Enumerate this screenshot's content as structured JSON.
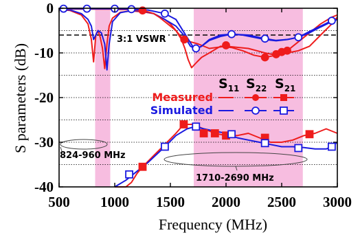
{
  "chart_data": {
    "type": "line",
    "title": "",
    "xlabel": "Frequency (MHz)",
    "ylabel": "S parameters (dB)",
    "xlim": [
      500,
      3000
    ],
    "ylim": [
      -40,
      0
    ],
    "x_ticks": [
      500,
      1000,
      1500,
      2000,
      2500,
      3000
    ],
    "y_ticks": [
      0,
      -10,
      -20,
      -30,
      -40
    ],
    "grid": "horizontal-dotted",
    "colors": {
      "measured": "#ee1c1c",
      "simulated": "#1a1ae0",
      "band": "#f7bde0"
    },
    "bands": [
      {
        "label": "824-960 MHz",
        "from": 824,
        "to": 960
      },
      {
        "label": "1710-2690 MHz",
        "from": 1710,
        "to": 2690
      }
    ],
    "reference_line": {
      "label": "3:1 VSWR",
      "y": -6
    },
    "legend": {
      "position": "center-right",
      "column_headers": [
        {
          "main": "S",
          "sub": "11"
        },
        {
          "main": "S",
          "sub": "22"
        },
        {
          "main": "S",
          "sub": "21"
        }
      ],
      "rows": [
        "Measured",
        "Simulated"
      ]
    },
    "series": [
      {
        "kind": "measured",
        "param": "S11",
        "marker": "none",
        "x": [
          500,
          600,
          700,
          760,
          790,
          810,
          830,
          850,
          870,
          890,
          910,
          930,
          950,
          980,
          1050,
          1150,
          1250,
          1350,
          1450,
          1500,
          1550,
          1600,
          1630,
          1660,
          1690,
          1710,
          1740,
          1780,
          1850,
          1950,
          2050,
          2150,
          2250,
          2350,
          2450,
          2550,
          2650,
          2750,
          2850,
          2950,
          3000
        ],
        "y": [
          -0.3,
          -0.5,
          -1.5,
          -3.5,
          -7,
          -12,
          -6,
          -5,
          -6.5,
          -9,
          -13.5,
          -8,
          -4,
          -2.2,
          -0.9,
          -0.6,
          -0.8,
          -1.2,
          -2.5,
          -3.5,
          -5,
          -7,
          -9,
          -11.5,
          -13.3,
          -12.8,
          -12,
          -11,
          -10,
          -8.5,
          -8.8,
          -9.5,
          -10.5,
          -11,
          -10.5,
          -9.5,
          -7.5,
          -5.5,
          -3.5,
          -2,
          -1.5
        ]
      },
      {
        "kind": "simulated",
        "param": "S11",
        "marker": "none",
        "x": [
          500,
          600,
          700,
          760,
          790,
          810,
          830,
          850,
          880,
          910,
          930,
          950,
          980,
          1050,
          1150,
          1250,
          1350,
          1450,
          1550,
          1620,
          1680,
          1730,
          1780,
          1850,
          1950,
          2050,
          2150,
          2250,
          2350,
          2450,
          2550,
          2650,
          2750,
          2850,
          2950,
          3000
        ],
        "y": [
          -0.2,
          -0.4,
          -1.2,
          -2.5,
          -4,
          -7,
          -6,
          -5,
          -5.5,
          -8,
          -13.8,
          -8,
          -3,
          -1,
          -0.5,
          -0.6,
          -1.2,
          -2.5,
          -4,
          -6,
          -8.5,
          -9.2,
          -8.5,
          -7,
          -6,
          -5.8,
          -6,
          -6.5,
          -7,
          -7.3,
          -7,
          -6.5,
          -5.2,
          -4,
          -2.8,
          -2.2
        ]
      },
      {
        "kind": "measured",
        "param": "S22",
        "marker": "circle",
        "x": [
          520,
          550,
          650,
          750,
          850,
          950,
          1050,
          1150,
          1250,
          1300,
          1350,
          1400,
          1450,
          1500,
          1550,
          1600,
          1625,
          1650,
          1750,
          1850,
          2000,
          2200,
          2350,
          2450,
          2550,
          2650,
          2750,
          2850,
          2950,
          3000
        ],
        "y": [
          -0.2,
          -0.2,
          -0.2,
          -0.2,
          -0.2,
          -0.2,
          -0.3,
          -0.3,
          -0.5,
          -0.8,
          -1.2,
          -2,
          -3,
          -4,
          -5,
          -6.5,
          -7,
          -7.3,
          -8,
          -9,
          -8.5,
          -9,
          -10,
          -10.5,
          -10,
          -9.5,
          -8.5,
          -6,
          -3.5,
          -2
        ],
        "markers_x": [
          1250,
          1625,
          2000,
          2350,
          2450,
          2500,
          2550
        ],
        "markers_y": [
          -0.5,
          -7,
          -8.3,
          -11,
          -10.3,
          -9.8,
          -9.5
        ]
      },
      {
        "kind": "simulated",
        "param": "S22",
        "marker": "circle",
        "x": [
          500,
          750,
          1000,
          1150,
          1300,
          1450,
          1550,
          1650,
          1700,
          1730,
          1780,
          1850,
          1950,
          2050,
          2200,
          2350,
          2450,
          2550,
          2650,
          2750,
          2850,
          2950,
          3000
        ],
        "y": [
          -0.1,
          -0.1,
          -0.1,
          -0.2,
          -0.4,
          -1.2,
          -2.5,
          -6.5,
          -8.5,
          -9,
          -8.5,
          -7.2,
          -6.3,
          -5.8,
          -6,
          -6.8,
          -7.2,
          -7,
          -6.5,
          -5.5,
          -4.2,
          -3,
          -2.5
        ],
        "markers_x": [
          540,
          750,
          1000,
          1150,
          1450,
          1730,
          2050,
          2350,
          2650,
          2950
        ],
        "markers_y": [
          -0.1,
          -0.1,
          -0.1,
          -0.2,
          -1.2,
          -9,
          -5.8,
          -6.8,
          -6.5,
          -2.8
        ]
      },
      {
        "kind": "measured",
        "param": "S21",
        "marker": "square",
        "x": [
          1000,
          1100,
          1150,
          1200,
          1250,
          1350,
          1450,
          1550,
          1620,
          1700,
          1800,
          1900,
          2000,
          2100,
          2200,
          2300,
          2400,
          2500,
          2600,
          2700,
          2800,
          2900,
          3000
        ],
        "y": [
          -40,
          -40,
          -39,
          -37,
          -35.5,
          -33,
          -30.5,
          -28,
          -26,
          -26,
          -27,
          -28,
          -28.5,
          -28.5,
          -28,
          -29,
          -30,
          -30,
          -29.5,
          -28.5,
          -28,
          -27,
          -28
        ],
        "markers_x": [
          1250,
          1620,
          1800,
          1900,
          2000,
          2350,
          2750
        ],
        "markers_y": [
          -35.5,
          -26,
          -28,
          -28,
          -28.5,
          -29,
          -28.2
        ]
      },
      {
        "kind": "simulated",
        "param": "S21",
        "marker": "square",
        "x": [
          1000,
          1100,
          1150,
          1200,
          1300,
          1450,
          1550,
          1650,
          1720,
          1800,
          1900,
          2000,
          2100,
          2200,
          2300,
          2400,
          2500,
          2600,
          2700,
          2800,
          2900,
          2950,
          3000
        ],
        "y": [
          -40,
          -38.5,
          -37.5,
          -36.5,
          -34.5,
          -31,
          -28.5,
          -27,
          -26.5,
          -27,
          -27.5,
          -28,
          -29,
          -29.5,
          -30,
          -30.5,
          -31,
          -31,
          -31.2,
          -31.5,
          -31.5,
          -31,
          -30
        ],
        "markers_x": [
          1130,
          1450,
          1730,
          2050,
          2350,
          2650,
          2950
        ],
        "markers_y": [
          -37.2,
          -31,
          -26.5,
          -28.2,
          -30.2,
          -31.3,
          -31
        ]
      }
    ]
  }
}
